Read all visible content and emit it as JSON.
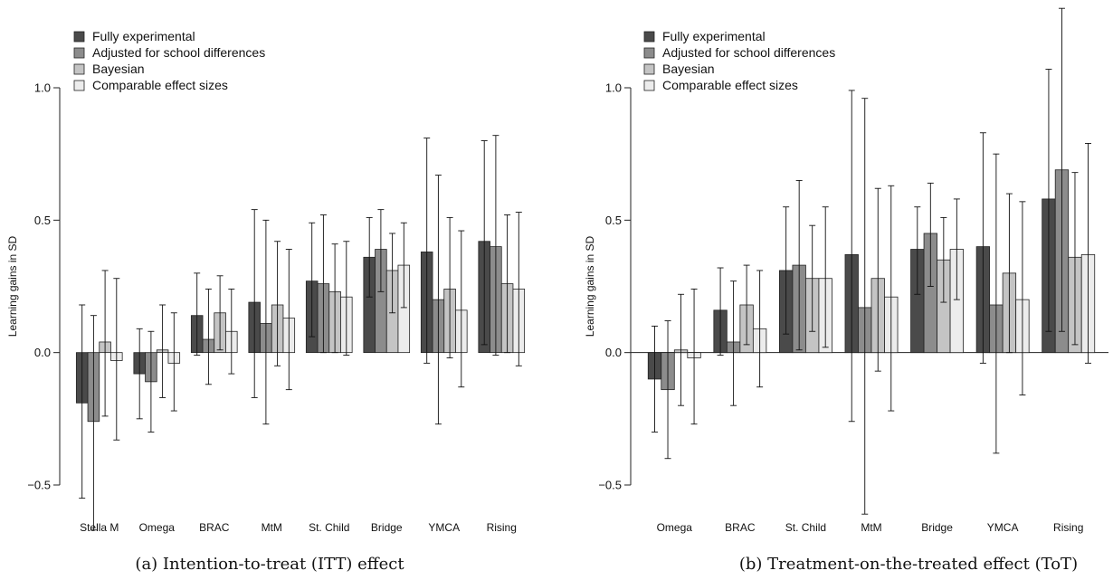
{
  "chart_data": [
    {
      "type": "bar",
      "panel": "a",
      "caption": "(a) Intention-to-treat (ITT) effect",
      "ylabel": "Learning gains in SD",
      "ylim": [
        -0.5,
        1.0
      ],
      "yticks": [
        "−0.5",
        "0.0",
        "0.5",
        "1.0"
      ],
      "ytick_values": [
        -0.5,
        0.0,
        0.5,
        1.0
      ],
      "zero_line": false,
      "categories": [
        "Stella M",
        "Omega",
        "BRAC",
        "MtM",
        "St. Child",
        "Bridge",
        "YMCA",
        "Rising"
      ],
      "series": [
        {
          "name": "Fully experimental",
          "color": "#4a4a4a",
          "values": [
            -0.19,
            -0.08,
            0.14,
            0.19,
            0.27,
            0.36,
            0.38,
            0.42
          ],
          "ci_low": [
            -0.55,
            -0.25,
            -0.01,
            -0.17,
            0.06,
            0.21,
            -0.04,
            0.03
          ],
          "ci_high": [
            0.18,
            0.09,
            0.3,
            0.54,
            0.49,
            0.51,
            0.81,
            0.8
          ]
        },
        {
          "name": "Adjusted for school differences",
          "color": "#8c8c8c",
          "values": [
            -0.26,
            -0.11,
            0.05,
            0.11,
            0.26,
            0.39,
            0.2,
            0.4
          ],
          "ci_low": [
            -0.67,
            -0.3,
            -0.12,
            -0.27,
            0.0,
            0.23,
            -0.27,
            -0.01
          ],
          "ci_high": [
            0.14,
            0.08,
            0.24,
            0.5,
            0.52,
            0.54,
            0.67,
            0.82
          ]
        },
        {
          "name": "Bayesian",
          "color": "#c4c4c4",
          "values": [
            0.04,
            0.01,
            0.15,
            0.18,
            0.23,
            0.31,
            0.24,
            0.26
          ],
          "ci_low": [
            -0.24,
            -0.17,
            0.01,
            -0.05,
            0.0,
            0.15,
            -0.02,
            0.0
          ],
          "ci_high": [
            0.31,
            0.18,
            0.29,
            0.42,
            0.41,
            0.45,
            0.51,
            0.52
          ]
        },
        {
          "name": "Comparable effect sizes",
          "color": "#ececec",
          "values": [
            -0.03,
            -0.04,
            0.08,
            0.13,
            0.21,
            0.33,
            0.16,
            0.24
          ],
          "ci_low": [
            -0.33,
            -0.22,
            -0.08,
            -0.14,
            -0.01,
            0.17,
            -0.13,
            -0.05
          ],
          "ci_high": [
            0.28,
            0.15,
            0.24,
            0.39,
            0.42,
            0.49,
            0.46,
            0.53
          ]
        }
      ]
    },
    {
      "type": "bar",
      "panel": "b",
      "caption": "(b) Treatment-on-the-treated effect (ToT)",
      "ylabel": "Learning gains in SD",
      "ylim": [
        -0.5,
        1.0
      ],
      "yticks": [
        "−0.5",
        "0.0",
        "0.5",
        "1.0"
      ],
      "ytick_values": [
        -0.5,
        0.0,
        0.5,
        1.0
      ],
      "zero_line": true,
      "categories": [
        "Omega",
        "BRAC",
        "St. Child",
        "MtM",
        "Bridge",
        "YMCA",
        "Rising"
      ],
      "series": [
        {
          "name": "Fully experimental",
          "color": "#4a4a4a",
          "values": [
            -0.1,
            0.16,
            0.31,
            0.37,
            0.39,
            0.4,
            0.58
          ],
          "ci_low": [
            -0.3,
            -0.01,
            0.07,
            -0.26,
            0.22,
            -0.04,
            0.08
          ],
          "ci_high": [
            0.1,
            0.32,
            0.55,
            0.99,
            0.55,
            0.83,
            1.07
          ]
        },
        {
          "name": "Adjusted for school differences",
          "color": "#8c8c8c",
          "values": [
            -0.14,
            0.04,
            0.33,
            0.17,
            0.45,
            0.18,
            0.69
          ],
          "ci_low": [
            -0.4,
            -0.2,
            0.01,
            -0.61,
            0.25,
            -0.38,
            0.08
          ],
          "ci_high": [
            0.12,
            0.27,
            0.65,
            0.96,
            0.64,
            0.75,
            1.3
          ]
        },
        {
          "name": "Bayesian",
          "color": "#c4c4c4",
          "values": [
            0.01,
            0.18,
            0.28,
            0.28,
            0.35,
            0.3,
            0.36
          ],
          "ci_low": [
            -0.2,
            0.03,
            0.08,
            -0.07,
            0.19,
            0.0,
            0.03
          ],
          "ci_high": [
            0.22,
            0.33,
            0.48,
            0.62,
            0.51,
            0.6,
            0.68
          ]
        },
        {
          "name": "Comparable effect sizes",
          "color": "#ececec",
          "values": [
            -0.02,
            0.09,
            0.28,
            0.21,
            0.39,
            0.2,
            0.37
          ],
          "ci_low": [
            -0.27,
            -0.13,
            0.02,
            -0.22,
            0.2,
            -0.16,
            -0.04
          ],
          "ci_high": [
            0.24,
            0.31,
            0.55,
            0.63,
            0.58,
            0.57,
            0.79
          ]
        }
      ]
    }
  ]
}
